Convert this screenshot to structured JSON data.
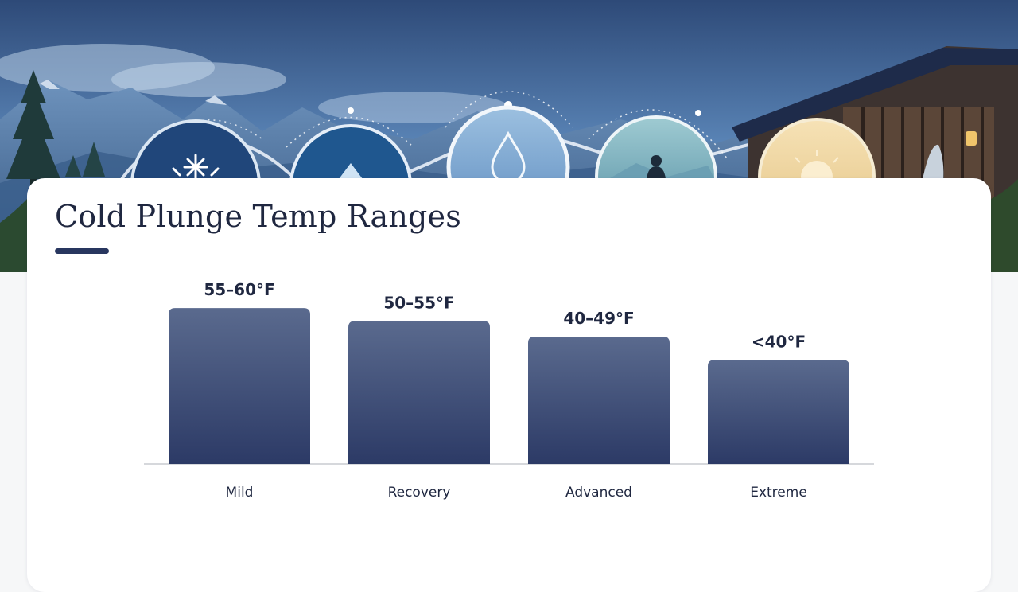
{
  "title": "Cold Plunge Temp Ranges",
  "colors": {
    "bar_top": "#5a6a8e",
    "bar_bottom": "#2c3a66",
    "text": "#1f2740",
    "axis": "#d6d8dc",
    "accent": "#28365f"
  },
  "hero_icons": [
    "snowflake-icon",
    "ice-crystal-icon",
    "water-drop-icon",
    "person-silhouette-icon",
    "sun-icon"
  ],
  "chart_data": {
    "type": "bar",
    "categories": [
      "Mild",
      "Recovery",
      "Advanced",
      "Extreme"
    ],
    "values": [
      60,
      55,
      49,
      40
    ],
    "value_labels": [
      "55–60°F",
      "50–55°F",
      "40–49°F",
      "<40°F"
    ],
    "ylim": [
      0,
      64
    ],
    "grid": false,
    "legend": "none"
  }
}
